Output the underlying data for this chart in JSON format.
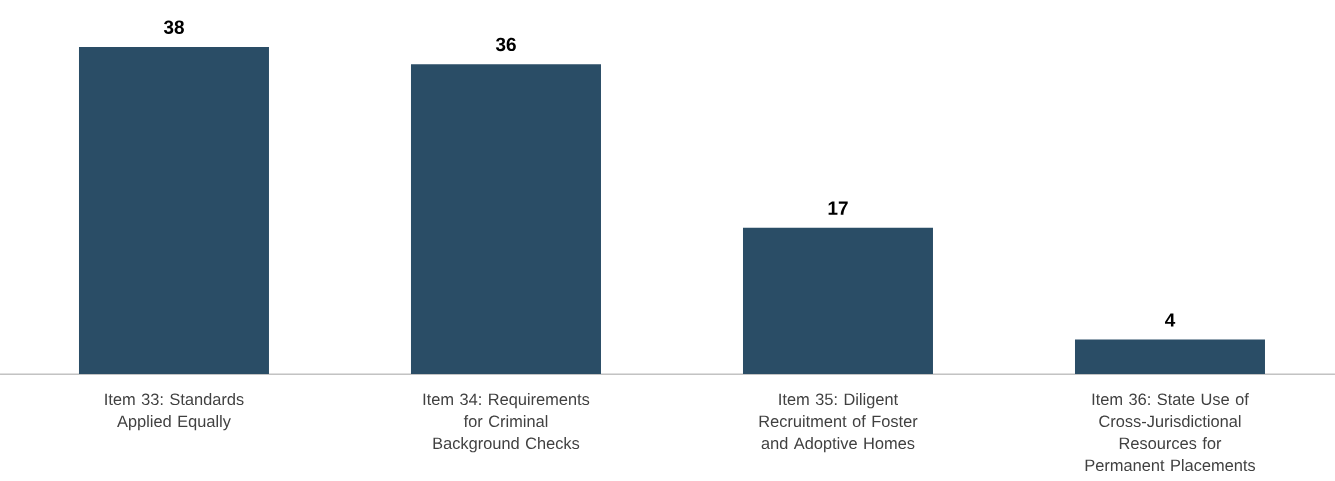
{
  "chart_data": {
    "type": "bar",
    "categories": [
      "Item 33: Standards Applied Equally",
      "Item 34: Requirements for Criminal Background Checks",
      "Item 35: Diligent Recruitment of Foster and Adoptive Homes",
      "Item 36: State Use of Cross-Jurisdictional Resources for Permanent Placements"
    ],
    "values": [
      38,
      36,
      17,
      4
    ],
    "color": "#2a4d66",
    "data_labels": true
  }
}
